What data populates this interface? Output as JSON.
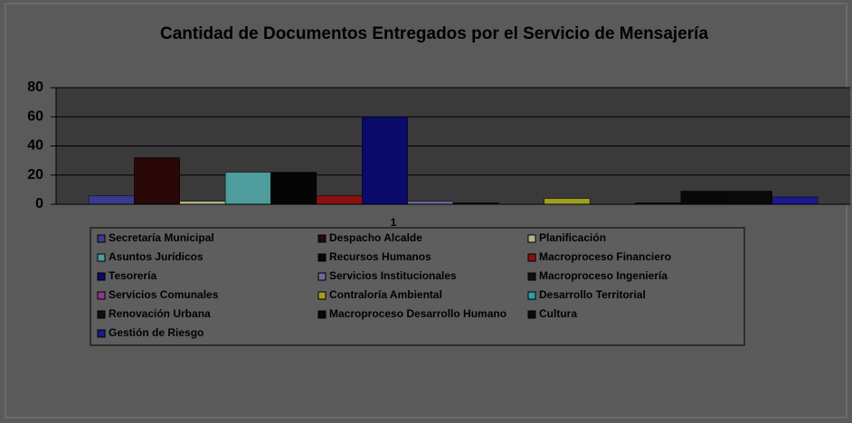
{
  "chart_data": {
    "type": "bar",
    "title": "Cantidad de Documentos Entregados por el Servicio de Mensajería",
    "categories": [
      "1"
    ],
    "series": [
      {
        "name": "Secretaría Municipal",
        "color": "#3a3a8c",
        "values": [
          6
        ]
      },
      {
        "name": "Despacho Alcalde",
        "color": "#2a0808",
        "values": [
          32
        ]
      },
      {
        "name": "Planificación",
        "color": "#b4b48c",
        "values": [
          2
        ]
      },
      {
        "name": "Asuntos Jurídicos",
        "color": "#4e9c9c",
        "values": [
          22
        ]
      },
      {
        "name": "Recursos Humanos",
        "color": "#050505",
        "values": [
          22
        ]
      },
      {
        "name": "Macroproceso Financiero",
        "color": "#8a1010",
        "values": [
          6
        ]
      },
      {
        "name": "Tesorería",
        "color": "#0a0a6a",
        "values": [
          60
        ]
      },
      {
        "name": "Servicios Institucionales",
        "color": "#6a6a9c",
        "values": [
          2
        ]
      },
      {
        "name": "Macroproceso Ingeniería",
        "color": "#101010",
        "values": [
          1
        ]
      },
      {
        "name": "Servicios Comunales",
        "color": "#8a3a8a",
        "values": [
          0
        ]
      },
      {
        "name": "Contraloría Ambiental",
        "color": "#a0a020",
        "values": [
          4
        ]
      },
      {
        "name": "Desarrollo Territorial",
        "color": "#30a0a8",
        "values": [
          0
        ]
      },
      {
        "name": "Renovación Urbana",
        "color": "#101010",
        "values": [
          1
        ]
      },
      {
        "name": "Macroproceso Desarrollo Humano",
        "color": "#080808",
        "values": [
          9
        ]
      },
      {
        "name": "Cultura",
        "color": "#0a0a0a",
        "values": [
          9
        ]
      },
      {
        "name": "Gestión de Riesgo",
        "color": "#1a1a8c",
        "values": [
          5
        ]
      }
    ],
    "ylim": [
      0,
      80
    ],
    "yticks": [
      0,
      20,
      40,
      60,
      80
    ],
    "grid": true,
    "legend": "bottom"
  }
}
